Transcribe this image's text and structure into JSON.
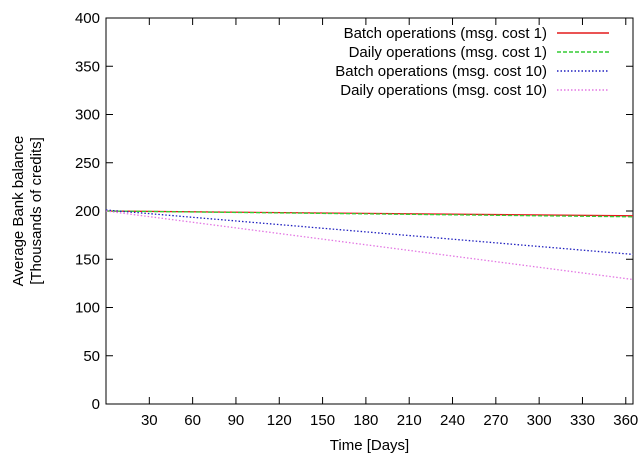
{
  "chart_data": {
    "type": "line",
    "xlabel": "Time [Days]",
    "ylabel": "Average Bank balance",
    "ylabel2": "[Thousands of credits]",
    "xlim": [
      0,
      365
    ],
    "ylim": [
      0,
      400
    ],
    "xticks": [
      30,
      60,
      90,
      120,
      150,
      180,
      210,
      240,
      270,
      300,
      330,
      360
    ],
    "yticks": [
      0,
      50,
      100,
      150,
      200,
      250,
      300,
      350,
      400
    ],
    "grid": false,
    "legend_position": "top-right",
    "series": [
      {
        "name": "Batch operations (msg. cost 1)",
        "color": "#e41a1c",
        "dash": "solid",
        "x": [
          0,
          365
        ],
        "y": [
          200,
          195
        ]
      },
      {
        "name": "Daily operations (msg. cost 1)",
        "color": "#33cc33",
        "dash": "dashed",
        "x": [
          0,
          365
        ],
        "y": [
          200,
          194
        ]
      },
      {
        "name": "Batch operations (msg. cost 10)",
        "color": "#1f1fbf",
        "dash": "dotted",
        "x": [
          0,
          365
        ],
        "y": [
          201,
          155
        ]
      },
      {
        "name": "Daily operations (msg. cost 10)",
        "color": "#e377e3",
        "dash": "dotted",
        "x": [
          0,
          365
        ],
        "y": [
          200,
          129
        ]
      }
    ]
  }
}
